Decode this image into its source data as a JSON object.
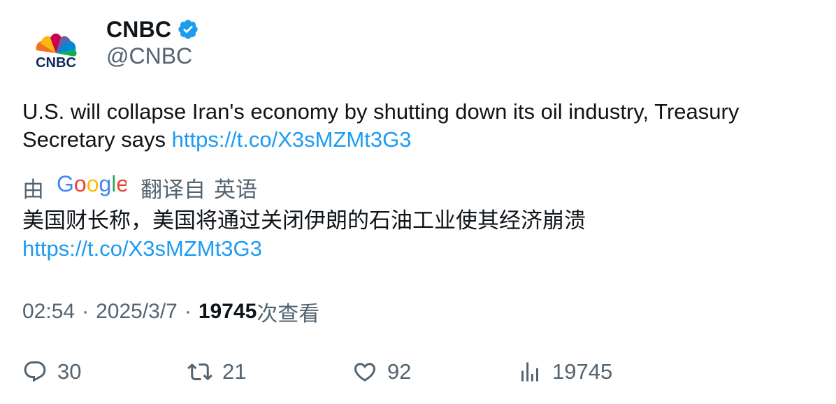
{
  "author": {
    "name": "CNBC",
    "handle": "@CNBC",
    "verified": true,
    "avatar_icon": "cnbc-peacock-logo",
    "logo_text": "CNBC"
  },
  "tweet": {
    "text_before_link": "U.S. will collapse Iran's economy by shutting down its oil industry, Treasury Secretary says ",
    "link": "https://t.co/X3sMZMt3G3"
  },
  "translation": {
    "by_label": "由",
    "provider": "Google",
    "from_label": "翻译自",
    "source_language": "英语",
    "text": "美国财长称，美国将通过关闭伊朗的石油工业使其经济崩溃",
    "link": "https://t.co/X3sMZMt3G3"
  },
  "meta": {
    "time": "02:54",
    "date": "2025/3/7",
    "views_count": "19745",
    "views_label": "次查看",
    "separator": "·"
  },
  "actions": {
    "replies": "30",
    "retweets": "21",
    "likes": "92",
    "views": "19745"
  },
  "colors": {
    "text_primary": "#0f1419",
    "text_secondary": "#536471",
    "link": "#1d9bf0",
    "verified_badge": "#1d9bf0"
  }
}
